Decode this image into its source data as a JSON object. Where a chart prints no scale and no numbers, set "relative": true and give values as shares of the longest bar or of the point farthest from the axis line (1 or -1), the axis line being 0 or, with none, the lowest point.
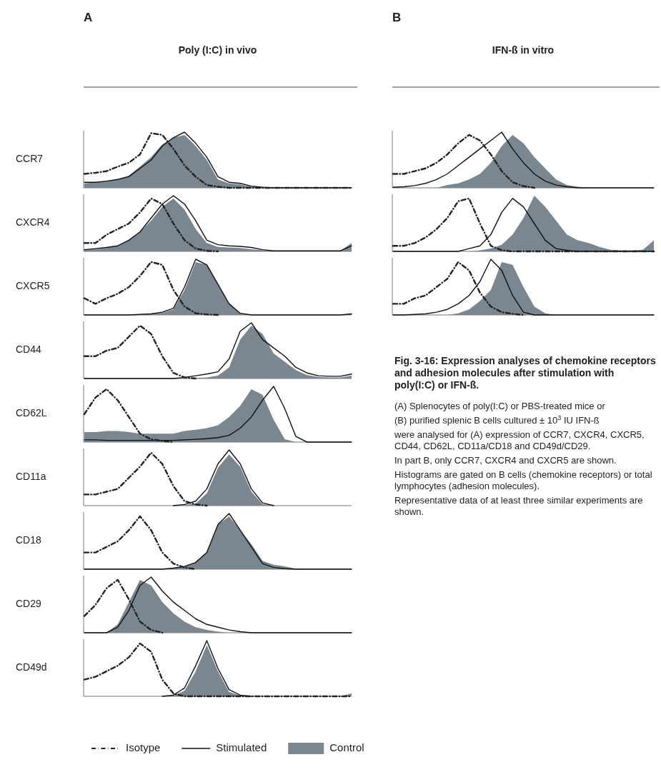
{
  "chart_data": [
    {
      "type": "area",
      "title": "CCR7",
      "subtitle": "Poly (I:C) in vivo",
      "annotations": [
        "A"
      ],
      "relative": true,
      "legend": false,
      "categories": [
        null,
        null,
        null,
        null,
        null,
        null,
        null,
        null,
        null,
        null,
        null,
        null,
        null,
        null,
        null,
        null,
        null,
        null,
        null,
        null,
        null,
        null,
        null,
        null,
        null
      ],
      "series": [
        {
          "type": "area",
          "color": "#7a8690",
          "values": [
            0.08,
            0.1,
            0.12,
            0.15,
            0.22,
            0.38,
            0.55,
            0.78,
            0.9,
            0.95,
            0.75,
            0.5,
            0.15,
            0.08,
            0.06,
            0.02,
            0.01,
            0,
            0,
            0,
            0,
            0,
            0,
            0,
            0
          ]
        },
        {
          "type": "line",
          "color": "#111111",
          "line_style": "solid",
          "values": [
            0.1,
            0.1,
            0.12,
            0.15,
            0.2,
            0.35,
            0.5,
            0.75,
            0.9,
            1,
            0.8,
            0.55,
            0.2,
            0.1,
            0.08,
            0.03,
            0.01,
            0,
            0,
            0,
            0,
            0,
            0,
            0,
            0
          ]
        },
        {
          "type": "line",
          "color": "#222222",
          "line_style": "dashed",
          "values": [
            0.25,
            0.27,
            0.3,
            0.38,
            0.45,
            0.6,
            0.98,
            0.95,
            0.7,
            0.4,
            0.2,
            0.05,
            0.02,
            0,
            0,
            0,
            0,
            0,
            0,
            0,
            0,
            0,
            0,
            0,
            0
          ]
        }
      ]
    },
    {
      "type": "area",
      "title": "CXCR4",
      "relative": true,
      "legend": false,
      "categories": [
        null,
        null,
        null,
        null,
        null,
        null,
        null,
        null,
        null,
        null,
        null,
        null,
        null,
        null,
        null,
        null,
        null,
        null,
        null,
        null,
        null,
        null,
        null,
        null,
        null
      ],
      "series": [
        {
          "type": "area",
          "color": "#7a8690",
          "values": [
            0.03,
            0.04,
            0.06,
            0.1,
            0.2,
            0.35,
            0.55,
            0.8,
            0.95,
            0.75,
            0.4,
            0.15,
            0.08,
            0.07,
            0.06,
            0.04,
            0.02,
            0.01,
            0.01,
            0.01,
            0.01,
            0.01,
            0.01,
            0.01,
            0.15
          ]
        },
        {
          "type": "line",
          "color": "#111111",
          "line_style": "solid",
          "values": [
            0.03,
            0.05,
            0.07,
            0.1,
            0.2,
            0.35,
            0.6,
            0.85,
            1,
            0.85,
            0.55,
            0.2,
            0.12,
            0.1,
            0.09,
            0.07,
            0.03,
            0.01,
            0.01,
            0.01,
            0.01,
            0.01,
            0.01,
            0.01,
            0.1
          ]
        },
        {
          "type": "line",
          "color": "#222222",
          "line_style": "dashed",
          "values": [
            0.15,
            0.15,
            0.3,
            0.4,
            0.5,
            0.7,
            0.95,
            0.85,
            0.5,
            0.2,
            0.05,
            0.01,
            0,
            null,
            null,
            null,
            null,
            null,
            null,
            null,
            null,
            null,
            null,
            null,
            null
          ]
        }
      ]
    },
    {
      "type": "area",
      "title": "CXCR5",
      "relative": true,
      "legend": false,
      "categories": [
        null,
        null,
        null,
        null,
        null,
        null,
        null,
        null,
        null,
        null,
        null,
        null,
        null,
        null,
        null,
        null,
        null,
        null,
        null,
        null,
        null,
        null,
        null,
        null,
        null
      ],
      "series": [
        {
          "type": "area",
          "color": "#7a8690",
          "values": [
            0,
            0,
            0,
            0,
            0,
            0,
            0.02,
            0.04,
            0.1,
            0.45,
            0.95,
            0.9,
            0.55,
            0.2,
            0.03,
            0,
            0,
            0,
            0,
            0,
            0,
            0,
            0,
            0,
            0.02
          ]
        },
        {
          "type": "line",
          "color": "#111111",
          "line_style": "solid",
          "values": [
            0,
            0,
            0,
            0,
            0,
            0.01,
            0.02,
            0.05,
            0.12,
            0.5,
            1,
            0.9,
            0.55,
            0.2,
            0.03,
            0,
            0,
            0,
            0,
            0,
            0,
            0,
            0,
            0,
            0.02
          ]
        },
        {
          "type": "line",
          "color": "#222222",
          "line_style": "dashed",
          "values": [
            0.3,
            0.2,
            0.3,
            0.38,
            0.5,
            0.7,
            0.95,
            0.9,
            0.45,
            0.15,
            0.03,
            0.01,
            0,
            null,
            null,
            null,
            null,
            null,
            null,
            null,
            null,
            null,
            null,
            null,
            null
          ]
        }
      ]
    },
    {
      "type": "area",
      "title": "CD44",
      "relative": true,
      "legend": false,
      "categories": [
        null,
        null,
        null,
        null,
        null,
        null,
        null,
        null,
        null,
        null,
        null,
        null,
        null,
        null,
        null,
        null,
        null,
        null,
        null,
        null,
        null,
        null,
        null,
        null,
        null
      ],
      "series": [
        {
          "type": "area",
          "color": "#7a8690",
          "values": [
            0,
            0,
            0,
            0,
            0,
            0,
            0,
            0,
            0,
            0,
            0.01,
            0.02,
            0.05,
            0.2,
            0.7,
            0.95,
            0.8,
            0.45,
            0.3,
            0.15,
            0.06,
            0.03,
            0.02,
            0.02,
            0.05
          ]
        },
        {
          "type": "line",
          "color": "#111111",
          "line_style": "solid",
          "values": [
            0,
            0,
            0,
            0,
            0,
            0,
            0,
            0,
            0,
            0.02,
            0.05,
            0.08,
            0.12,
            0.35,
            0.85,
            1,
            0.7,
            0.55,
            0.4,
            0.2,
            0.1,
            0.05,
            0.04,
            0.04,
            0.08
          ]
        },
        {
          "type": "line",
          "color": "#222222",
          "line_style": "dashed",
          "values": [
            0.4,
            0.4,
            0.5,
            0.55,
            0.75,
            0.95,
            0.8,
            0.4,
            0.1,
            0.02,
            0,
            null,
            null,
            null,
            null,
            null,
            null,
            null,
            null,
            null,
            null,
            null,
            null,
            null,
            null
          ]
        }
      ]
    },
    {
      "type": "area",
      "title": "CD62L",
      "relative": true,
      "legend": false,
      "categories": [
        null,
        null,
        null,
        null,
        null,
        null,
        null,
        null,
        null,
        null,
        null,
        null,
        null,
        null,
        null,
        null,
        null,
        null,
        null,
        null,
        null,
        null,
        null,
        null,
        null
      ],
      "series": [
        {
          "type": "area",
          "color": "#7a8690",
          "values": [
            0.18,
            0.18,
            0.2,
            0.2,
            0.18,
            0.15,
            0.15,
            0.15,
            0.15,
            0.2,
            0.22,
            0.25,
            0.3,
            0.45,
            0.65,
            0.95,
            0.85,
            0.4,
            0.05,
            0,
            0,
            0,
            0,
            0,
            0
          ]
        },
        {
          "type": "line",
          "color": "#111111",
          "line_style": "solid",
          "values": [
            0.04,
            0.04,
            0.03,
            0.03,
            0.03,
            0.03,
            0.03,
            0.03,
            0.03,
            0.04,
            0.05,
            0.06,
            0.08,
            0.12,
            0.25,
            0.45,
            0.75,
            1,
            0.6,
            0.1,
            0,
            0,
            0,
            0,
            0
          ]
        },
        {
          "type": "line",
          "color": "#222222",
          "line_style": "dashed",
          "values": [
            0.5,
            0.8,
            0.95,
            0.75,
            0.45,
            0.15,
            0.05,
            0.02,
            0,
            null,
            null,
            null,
            null,
            null,
            null,
            null,
            null,
            null,
            null,
            null,
            null,
            null,
            null,
            null,
            null
          ]
        }
      ]
    },
    {
      "type": "area",
      "title": "CD11a",
      "relative": true,
      "legend": false,
      "categories": [
        null,
        null,
        null,
        null,
        null,
        null,
        null,
        null,
        null,
        null,
        null,
        null,
        null,
        null,
        null,
        null,
        null,
        null,
        null,
        null,
        null,
        null,
        null,
        null,
        null
      ],
      "series": [
        {
          "type": "area",
          "color": "#7a8690",
          "values": [
            0,
            0,
            0,
            0,
            0,
            0,
            0,
            0,
            0,
            0.01,
            0.04,
            0.22,
            0.68,
            0.92,
            0.7,
            0.25,
            0.03,
            0,
            0,
            0,
            0,
            0,
            0,
            0,
            0
          ]
        },
        {
          "type": "line",
          "color": "#111111",
          "line_style": "solid",
          "values": [
            null,
            null,
            null,
            null,
            null,
            null,
            null,
            null,
            0,
            0.02,
            0.08,
            0.3,
            0.75,
            1,
            0.75,
            0.3,
            0.05,
            0,
            null,
            null,
            null,
            null,
            null,
            null,
            null
          ]
        },
        {
          "type": "line",
          "color": "#222222",
          "line_style": "dashed",
          "values": [
            0.2,
            0.2,
            0.25,
            0.3,
            0.5,
            0.7,
            0.95,
            0.75,
            0.35,
            0.08,
            0.02,
            0,
            null,
            null,
            null,
            null,
            null,
            null,
            null,
            null,
            null,
            null,
            null,
            null,
            null
          ]
        }
      ]
    },
    {
      "type": "area",
      "title": "CD18",
      "relative": true,
      "legend": false,
      "categories": [
        null,
        null,
        null,
        null,
        null,
        null,
        null,
        null,
        null,
        null,
        null,
        null,
        null,
        null,
        null,
        null,
        null,
        null,
        null,
        null,
        null,
        null,
        null,
        null,
        null
      ],
      "series": [
        {
          "type": "area",
          "color": "#7a8690",
          "values": [
            0,
            0,
            0,
            0,
            0,
            0,
            0,
            0,
            0.02,
            0.05,
            0.12,
            0.3,
            0.8,
            0.95,
            0.7,
            0.45,
            0.15,
            0.08,
            0.05,
            0.01,
            0,
            0,
            0,
            0,
            0
          ]
        },
        {
          "type": "line",
          "color": "#111111",
          "line_style": "solid",
          "values": [
            0,
            0,
            0,
            0,
            0,
            0,
            0,
            0,
            0.02,
            0.05,
            0.12,
            0.3,
            0.8,
            1,
            0.7,
            0.4,
            0.1,
            0.03,
            0.01,
            0,
            0,
            0,
            0,
            0,
            0
          ]
        },
        {
          "type": "line",
          "color": "#222222",
          "line_style": "dashed",
          "values": [
            0.3,
            0.3,
            0.4,
            0.5,
            0.7,
            0.95,
            0.7,
            0.3,
            0.1,
            0.03,
            0,
            null,
            null,
            null,
            null,
            null,
            null,
            null,
            null,
            null,
            null,
            null,
            null,
            null,
            null
          ]
        }
      ]
    },
    {
      "type": "area",
      "title": "CD29",
      "relative": true,
      "legend": false,
      "categories": [
        null,
        null,
        null,
        null,
        null,
        null,
        null,
        null,
        null,
        null,
        null,
        null,
        null,
        null,
        null,
        null,
        null,
        null,
        null,
        null,
        null,
        null,
        null,
        null,
        null
      ],
      "series": [
        {
          "type": "area",
          "color": "#7a8690",
          "values": [
            0,
            0,
            0,
            0.15,
            0.55,
            0.95,
            0.85,
            0.55,
            0.35,
            0.2,
            0.1,
            0.05,
            0.02,
            0,
            0,
            0,
            0,
            0,
            0,
            0,
            0,
            0,
            0,
            0,
            0
          ]
        },
        {
          "type": "line",
          "color": "#111111",
          "line_style": "solid",
          "values": [
            0,
            0,
            0,
            0.1,
            0.4,
            0.85,
            1,
            0.75,
            0.55,
            0.4,
            0.25,
            0.15,
            0.1,
            0.05,
            0.02,
            0,
            0,
            0,
            0,
            0,
            0,
            0,
            0,
            0,
            0
          ]
        },
        {
          "type": "line",
          "color": "#222222",
          "line_style": "dashed",
          "values": [
            0.3,
            0.5,
            0.8,
            0.95,
            0.6,
            0.2,
            0.05,
            0,
            null,
            null,
            null,
            null,
            null,
            null,
            null,
            null,
            null,
            null,
            null,
            null,
            null,
            null,
            null,
            null,
            null
          ]
        }
      ]
    },
    {
      "type": "area",
      "title": "CD49d",
      "relative": true,
      "legend": "bottom",
      "categories": [
        null,
        null,
        null,
        null,
        null,
        null,
        null,
        null,
        null,
        null,
        null,
        null,
        null,
        null,
        null,
        null,
        null,
        null,
        null,
        null,
        null,
        null,
        null,
        null,
        null
      ],
      "series": [
        {
          "name": "Control",
          "type": "area",
          "color": "#7a8690",
          "values": [
            0,
            0,
            0,
            0,
            0,
            0,
            0,
            0,
            0.01,
            0.1,
            0.45,
            0.92,
            0.45,
            0.08,
            0.01,
            0,
            0,
            0,
            0,
            0,
            0,
            0,
            0,
            0,
            0.05
          ]
        },
        {
          "name": "Stimulated",
          "type": "line",
          "color": "#111111",
          "line_style": "solid",
          "values": [
            null,
            null,
            null,
            null,
            null,
            null,
            null,
            0,
            0.02,
            0.15,
            0.55,
            1,
            0.5,
            0.12,
            0.02,
            0,
            null,
            null,
            null,
            null,
            null,
            null,
            null,
            null,
            null
          ]
        },
        {
          "name": "Isotype",
          "type": "line",
          "color": "#222222",
          "line_style": "dashed",
          "values": [
            0.3,
            0.35,
            0.45,
            0.55,
            0.7,
            0.95,
            0.8,
            0.3,
            0.05,
            0,
            0,
            0,
            0,
            0,
            0,
            0,
            0,
            0,
            0,
            0,
            0,
            0,
            0,
            0,
            0
          ]
        }
      ]
    },
    {
      "type": "area",
      "title": null,
      "subtitle": "IFN-ß in vitro",
      "annotations": [
        "B"
      ],
      "relative": true,
      "legend": false,
      "categories": [
        null,
        null,
        null,
        null,
        null,
        null,
        null,
        null,
        null,
        null,
        null,
        null,
        null,
        null,
        null,
        null,
        null,
        null,
        null,
        null,
        null,
        null,
        null,
        null,
        null
      ],
      "series": [
        {
          "type": "area",
          "color": "#7a8690",
          "values": [
            0,
            0,
            0,
            0,
            0,
            0.05,
            0.08,
            0.15,
            0.25,
            0.45,
            0.75,
            0.95,
            0.8,
            0.55,
            0.35,
            0.15,
            0.05,
            0.02,
            0,
            0,
            0,
            0,
            0,
            0,
            0
          ]
        },
        {
          "type": "line",
          "color": "#111111",
          "line_style": "solid",
          "values": [
            0.01,
            0.02,
            0.04,
            0.08,
            0.15,
            0.25,
            0.4,
            0.55,
            0.7,
            0.85,
            1,
            0.7,
            0.45,
            0.25,
            0.12,
            0.05,
            0.02,
            0,
            0,
            0,
            0,
            0,
            0,
            0,
            0
          ]
        },
        {
          "type": "line",
          "color": "#222222",
          "line_style": "dashed",
          "values": [
            0.25,
            0.25,
            0.3,
            0.35,
            0.45,
            0.6,
            0.8,
            0.95,
            0.85,
            0.6,
            0.3,
            0.1,
            0.03,
            0,
            null,
            null,
            null,
            null,
            null,
            null,
            null,
            null,
            null,
            null,
            null
          ]
        }
      ]
    },
    {
      "type": "area",
      "title": null,
      "relative": true,
      "legend": false,
      "categories": [
        null,
        null,
        null,
        null,
        null,
        null,
        null,
        null,
        null,
        null,
        null,
        null,
        null,
        null,
        null,
        null,
        null,
        null,
        null,
        null,
        null,
        null,
        null,
        null,
        null
      ],
      "series": [
        {
          "type": "area",
          "color": "#7a8690",
          "values": [
            0,
            0,
            0,
            0,
            0,
            0,
            0,
            0,
            0.02,
            0.05,
            0.12,
            0.3,
            0.6,
            1,
            0.8,
            0.55,
            0.3,
            0.2,
            0.15,
            0.08,
            0.03,
            0.02,
            0.02,
            0.03,
            0.2
          ]
        },
        {
          "type": "line",
          "color": "#111111",
          "line_style": "solid",
          "values": [
            0,
            0,
            0,
            0,
            0,
            0,
            0,
            0.05,
            0.1,
            0.3,
            0.7,
            0.95,
            0.8,
            0.5,
            0.2,
            0.05,
            0.02,
            0,
            0,
            0,
            0,
            0,
            0,
            0,
            0
          ]
        },
        {
          "type": "line",
          "color": "#222222",
          "line_style": "dashed",
          "values": [
            0.1,
            0.1,
            0.15,
            0.25,
            0.4,
            0.6,
            0.9,
            0.95,
            0.5,
            0.1,
            0.02,
            0,
            0,
            0,
            0,
            0,
            0,
            0,
            0,
            0,
            0,
            0,
            0,
            0,
            0
          ]
        }
      ]
    },
    {
      "type": "area",
      "title": null,
      "relative": true,
      "legend": false,
      "categories": [
        null,
        null,
        null,
        null,
        null,
        null,
        null,
        null,
        null,
        null,
        null,
        null,
        null,
        null,
        null,
        null,
        null,
        null,
        null,
        null,
        null,
        null,
        null,
        null,
        null
      ],
      "series": [
        {
          "type": "area",
          "color": "#7a8690",
          "values": [
            0,
            0,
            0,
            0,
            0,
            0,
            0.03,
            0.1,
            0.25,
            0.45,
            0.95,
            0.9,
            0.5,
            0.15,
            0.03,
            0,
            0,
            0,
            0,
            0,
            0,
            0,
            0,
            0,
            0
          ]
        },
        {
          "type": "line",
          "color": "#111111",
          "line_style": "solid",
          "values": [
            0,
            0,
            0.01,
            0.02,
            0.05,
            0.1,
            0.2,
            0.35,
            0.6,
            1,
            0.8,
            0.35,
            0.05,
            0,
            0,
            0,
            0,
            0,
            0,
            0,
            0,
            0,
            0,
            0,
            0
          ]
        },
        {
          "type": "line",
          "color": "#222222",
          "line_style": "dashed",
          "values": [
            0.2,
            0.2,
            0.3,
            0.35,
            0.5,
            0.65,
            0.95,
            0.8,
            0.4,
            0.15,
            0.05,
            0.02,
            0,
            null,
            null,
            null,
            null,
            null,
            null,
            null,
            null,
            null,
            null,
            null,
            null
          ]
        }
      ]
    },
    {
      "type": "other",
      "title": "Fig. 3-16: Expression analyses of chemokine receptors and adhesion molecules after stimulation with poly(I:C) or IFN-ß.",
      "annotations": [
        "(A) Splenocytes of poly(I:C) or PBS-treated mice or",
        "(B) purified splenic B cells cultured ± 10$^{3}$ IU IFN-ß",
        "were analysed for (A) expression of CCR7, CXCR4, CXCR5, CD44, CD62L, CD11a/CD18 and CD49d/CD29.",
        "In part B, only CCR7, CXCR4 and CXCR5 are shown.",
        "Histograms are gated on B cells (chemokine receptors) or total lymphocytes (adhesion molecules).",
        "Representative data of at least three similar experiments are shown."
      ]
    }
  ]
}
